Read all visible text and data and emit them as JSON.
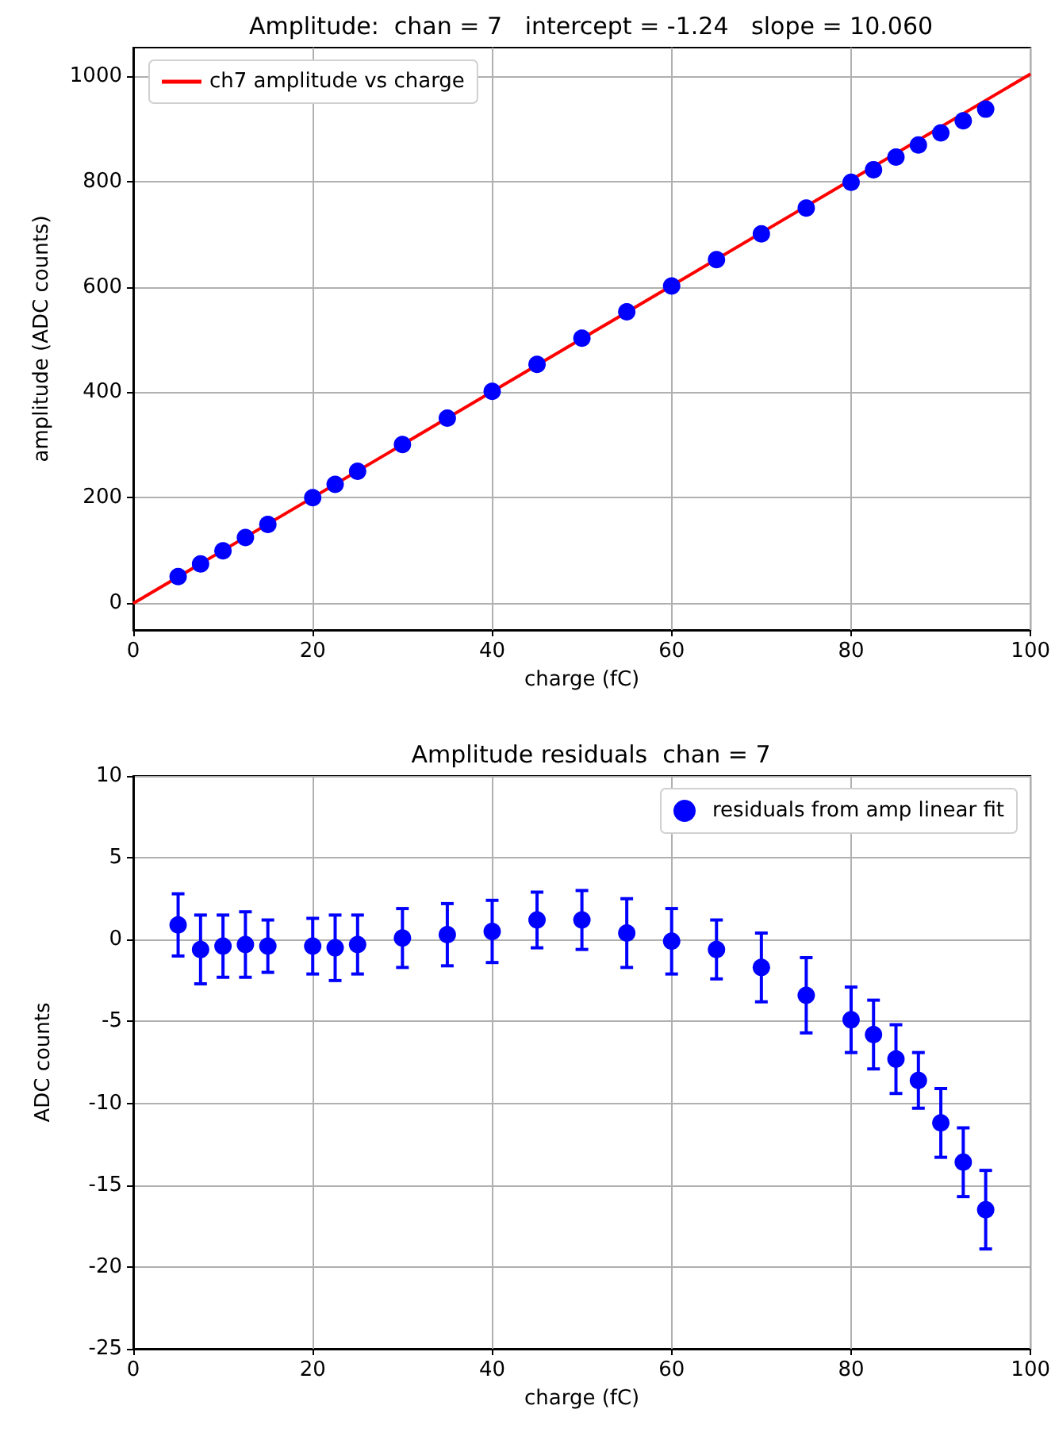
{
  "chart_data": [
    {
      "type": "scatter",
      "title": "Amplitude:  chan = 7   intercept = -1.24   slope = 10.060",
      "xlabel": "charge (fC)",
      "ylabel": "amplitude (ADC counts)",
      "xlim": [
        0,
        100
      ],
      "xticks": [
        0,
        20,
        40,
        60,
        80,
        100
      ],
      "ylim": [
        -51.5,
        1055
      ],
      "yticks": [
        0,
        200,
        400,
        600,
        800,
        1000
      ],
      "grid": true,
      "legend": "top left",
      "series": [
        {
          "marker": "circle",
          "color": "#0000ff",
          "x": [
            5,
            7.5,
            10,
            12.5,
            15,
            20,
            22.5,
            25,
            30,
            35,
            40,
            45,
            50,
            55,
            60,
            65,
            70,
            75,
            80,
            82.5,
            85,
            87.5,
            90,
            92.5,
            95
          ],
          "values": [
            50,
            74,
            99,
            124,
            149,
            200,
            225,
            250,
            301,
            351,
            402,
            453,
            503,
            553,
            602,
            652,
            701,
            750,
            799,
            823,
            847,
            870,
            893,
            916,
            938
          ]
        },
        {
          "type": "line",
          "marker": "none",
          "name": "ch7 amplitude vs charge",
          "color": "#ff0000",
          "x": [
            0,
            100
          ],
          "values": [
            -1,
            1005
          ]
        }
      ]
    },
    {
      "type": "scatter",
      "title": "Amplitude residuals  chan = 7",
      "xlabel": "charge (fC)",
      "ylabel": "ADC counts",
      "xlim": [
        0,
        100
      ],
      "xticks": [
        0,
        20,
        40,
        60,
        80,
        100
      ],
      "ylim": [
        -25,
        10
      ],
      "yticks": [
        -25,
        -20,
        -15,
        -10,
        -5,
        0,
        5,
        10
      ],
      "grid": true,
      "legend": "top right",
      "series": [
        {
          "marker": "circle",
          "name": "residuals from amp linear fit",
          "color": "#0000ff",
          "x": [
            5,
            7.5,
            10,
            12.5,
            15,
            20,
            22.5,
            25,
            30,
            35,
            40,
            45,
            50,
            55,
            60,
            65,
            70,
            75,
            80,
            82.5,
            85,
            87.5,
            90,
            92.5,
            95
          ],
          "values": [
            0.9,
            -0.6,
            -0.4,
            -0.3,
            -0.4,
            -0.4,
            -0.5,
            -0.3,
            0.1,
            0.3,
            0.5,
            1.2,
            1.2,
            0.4,
            -0.1,
            -0.6,
            -1.7,
            -3.4,
            -4.9,
            -5.8,
            -7.3,
            -8.6,
            -11.2,
            -13.6,
            -16.5
          ],
          "errors": [
            1.9,
            2.1,
            1.9,
            2.0,
            1.6,
            1.7,
            2.0,
            1.8,
            1.8,
            1.9,
            1.9,
            1.7,
            1.8,
            2.1,
            2.0,
            1.8,
            2.1,
            2.3,
            2.0,
            2.1,
            2.1,
            1.7,
            2.1,
            2.1,
            2.4
          ]
        }
      ]
    }
  ]
}
